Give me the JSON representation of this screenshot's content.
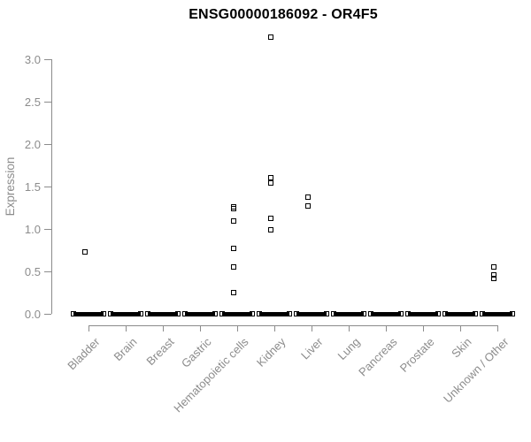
{
  "chart_data": {
    "type": "scatter",
    "title": "ENSG00000186092 - OR4F5",
    "ylabel": "Expression",
    "ylim": [
      0,
      3.0
    ],
    "yticks": [
      "0.0",
      "0.5",
      "1.0",
      "1.5",
      "2.0",
      "2.5",
      "3.0"
    ],
    "grid": false,
    "legend": "none",
    "point_style": "open-square",
    "colors": {
      "title": "#000000",
      "axis": "#8c8c8c",
      "tick_labels": "#8c8c8c",
      "points": "#000000",
      "background": "#ffffff"
    },
    "categories": [
      "Bladder",
      "Brain",
      "Breast",
      "Gastric",
      "Hematopoietic cells",
      "Kidney",
      "Liver",
      "Lung",
      "Pancreas",
      "Prostate",
      "Skin",
      "Unknown / Other"
    ],
    "series": [
      {
        "category": "Bladder",
        "nonzero_values": [
          0.73
        ],
        "zero_cluster": true
      },
      {
        "category": "Brain",
        "nonzero_values": [],
        "zero_cluster": true
      },
      {
        "category": "Breast",
        "nonzero_values": [],
        "zero_cluster": true
      },
      {
        "category": "Gastric",
        "nonzero_values": [],
        "zero_cluster": true
      },
      {
        "category": "Hematopoietic cells",
        "nonzero_values": [
          1.26,
          1.24,
          1.1,
          0.77,
          0.55,
          0.25
        ],
        "zero_cluster": true
      },
      {
        "category": "Kidney",
        "nonzero_values": [
          3.27,
          1.61,
          1.55,
          1.13,
          0.99
        ],
        "zero_cluster": true
      },
      {
        "category": "Liver",
        "nonzero_values": [
          1.38,
          1.28
        ],
        "zero_cluster": true
      },
      {
        "category": "Lung",
        "nonzero_values": [],
        "zero_cluster": true
      },
      {
        "category": "Pancreas",
        "nonzero_values": [],
        "zero_cluster": true
      },
      {
        "category": "Prostate",
        "nonzero_values": [],
        "zero_cluster": true
      },
      {
        "category": "Skin",
        "nonzero_values": [],
        "zero_cluster": true
      },
      {
        "category": "Unknown / Other",
        "nonzero_values": [
          0.55,
          0.46,
          0.42
        ],
        "zero_cluster": true
      }
    ]
  }
}
